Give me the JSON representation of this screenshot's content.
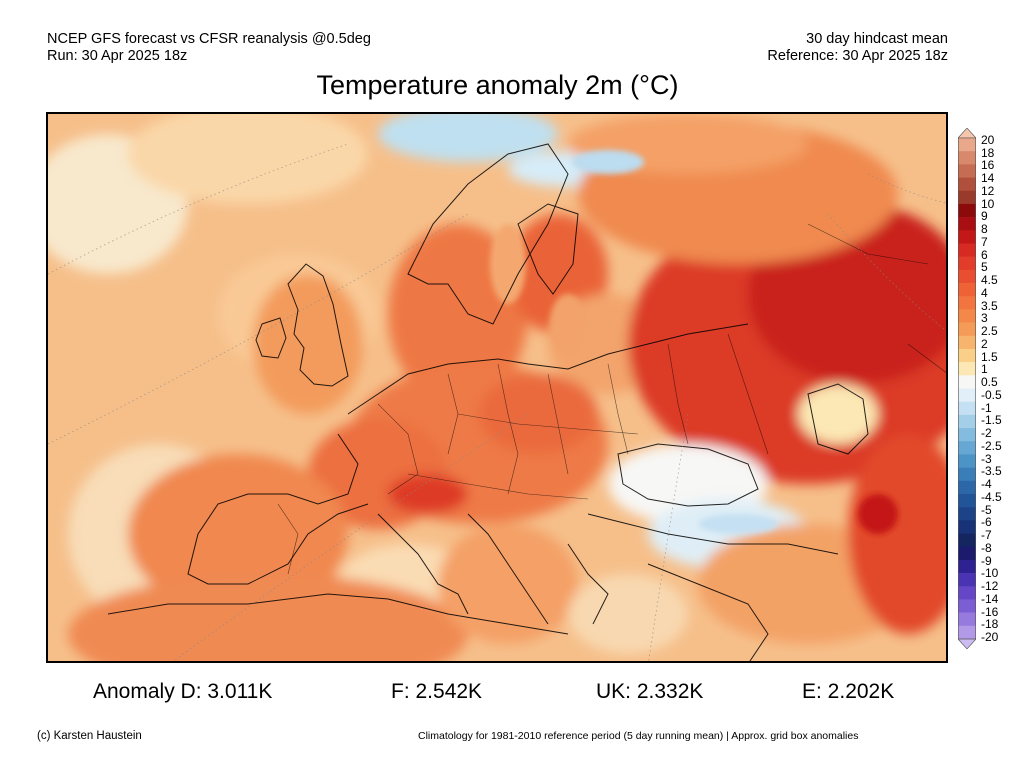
{
  "header": {
    "line1_left": "NCEP GFS forecast vs CFSR reanalysis @0.5deg",
    "line2_left": "Run: 30 Apr 2025 18z",
    "line1_right": "30 day hindcast mean",
    "line2_right": "Reference: 30 Apr 2025 18z"
  },
  "title": "Temperature anomaly 2m (°C)",
  "colorbar": {
    "labels": [
      "20",
      "18",
      "16",
      "14",
      "12",
      "10",
      "9",
      "8",
      "7",
      "6",
      "5",
      "4.5",
      "4",
      "3.5",
      "3",
      "2.5",
      "2",
      "1.5",
      "1",
      "0.5",
      "-0.5",
      "-1",
      "-1.5",
      "-2",
      "-2.5",
      "-3",
      "-3.5",
      "-4",
      "-4.5",
      "-5",
      "-6",
      "-7",
      "-8",
      "-9",
      "-10",
      "-12",
      "-14",
      "-16",
      "-18",
      "-20"
    ],
    "colors": [
      "#f6c6ac",
      "#eaa88a",
      "#d8896c",
      "#c66c52",
      "#b0503c",
      "#9a3a2a",
      "#8c0a0a",
      "#a80e12",
      "#c41818",
      "#d62a22",
      "#e23c2a",
      "#ea4e30",
      "#ef6236",
      "#f2743e",
      "#f48848",
      "#f59b58",
      "#f7b46c",
      "#fad088",
      "#fce8b4",
      "#f7f7f5",
      "#e2eef8",
      "#c4e0f2",
      "#a4cfe9",
      "#84bcdf",
      "#66a8d3",
      "#4c93c6",
      "#3a7eb8",
      "#2c68a8",
      "#225498",
      "#1c4288",
      "#173276",
      "#152560",
      "#1c1a6c",
      "#2e2292",
      "#4a34b4",
      "#6446c6",
      "#7c5ed4",
      "#967ade",
      "#b29ae8",
      "#ccbcf2"
    ]
  },
  "stats": {
    "d": "Anomaly D: 3.011K",
    "f": "F: 2.542K",
    "uk": "UK: 2.332K",
    "e": "E: 2.202K"
  },
  "footer": {
    "left": "(c) Karsten Haustein",
    "right": "Climatology for 1981-2010 reference period (5 day running mean) | Approx. grid box anomalies"
  }
}
